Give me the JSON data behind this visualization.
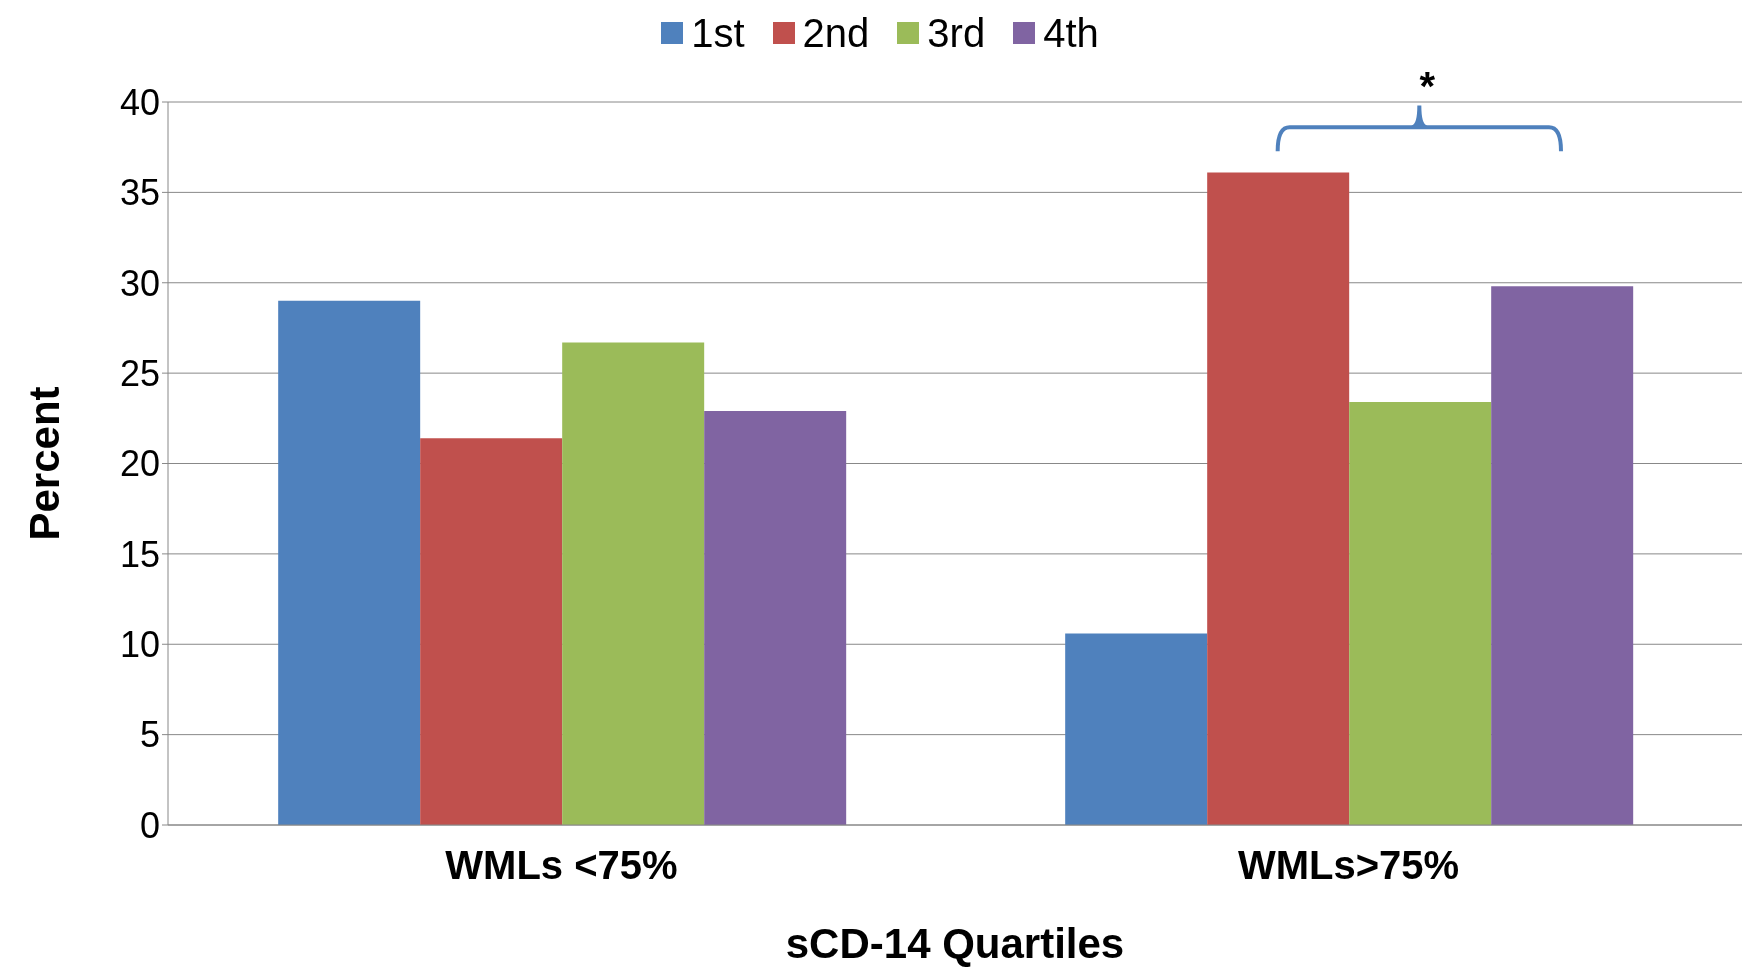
{
  "chart_data": {
    "type": "bar",
    "xlabel": "sCD-14 Quartiles",
    "ylabel": "Percent",
    "categories": [
      "WMLs <75%",
      "WMLs>75%"
    ],
    "series": [
      {
        "name": "1st",
        "color": "#4f81bd",
        "values": [
          29.0,
          10.6
        ]
      },
      {
        "name": "2nd",
        "color": "#c0504d",
        "values": [
          21.4,
          36.1
        ]
      },
      {
        "name": "3rd",
        "color": "#9bbb59",
        "values": [
          26.7,
          23.4
        ]
      },
      {
        "name": "4th",
        "color": "#8064a2",
        "values": [
          22.9,
          29.8
        ]
      }
    ],
    "ylim": [
      0,
      40
    ],
    "yticks": [
      0,
      5,
      10,
      15,
      20,
      25,
      30,
      35,
      40
    ],
    "grid": "y",
    "legend": "top",
    "annotations": [
      "*"
    ]
  }
}
